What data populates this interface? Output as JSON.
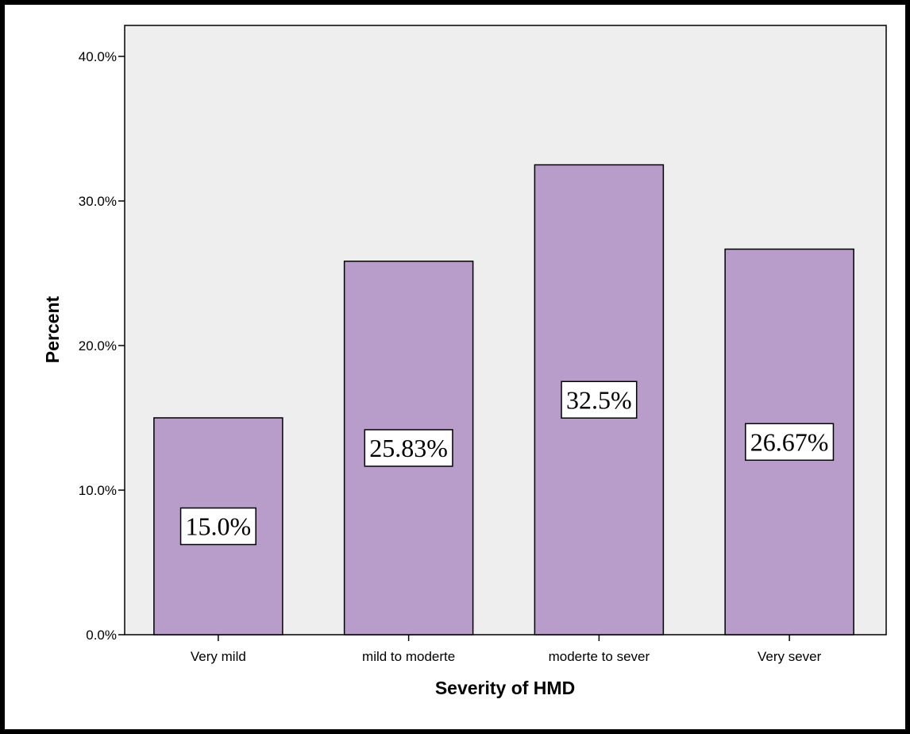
{
  "chart_data": {
    "type": "bar",
    "categories": [
      "Very mild",
      "mild to moderte",
      "moderte to sever",
      "Very sever"
    ],
    "values": [
      15.0,
      25.83,
      32.5,
      26.67
    ],
    "data_labels": [
      "15.0%",
      "25.83%",
      "32.5%",
      "26.67%"
    ],
    "xlabel": "Severity of HMD",
    "ylabel": "Percent",
    "ylim": [
      0,
      40
    ],
    "yticks": [
      0,
      10,
      20,
      30,
      40
    ],
    "ytick_labels": [
      "0.0%",
      "10.0%",
      "20.0%",
      "30.0%",
      "40.0%"
    ],
    "grid": false,
    "colors": {
      "bar_fill": "#b89cca",
      "bar_stroke": "#000000",
      "plot_background": "#efeeef",
      "frame": "#000000"
    }
  }
}
